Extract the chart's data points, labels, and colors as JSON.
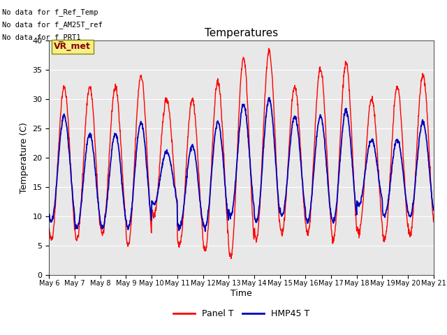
{
  "title": "Temperatures",
  "xlabel": "Time",
  "ylabel": "Temperature (C)",
  "ylim": [
    0,
    40
  ],
  "background_color": "#e8e8e8",
  "no_data_texts": [
    "No data for f_Ref_Temp",
    "No data for f_AM25T_ref",
    "No data for f_PRT1"
  ],
  "vr_met_label": "VR_met",
  "legend_entries": [
    "Panel T",
    "HMP45 T"
  ],
  "line_colors": [
    "#ff0000",
    "#0000bb"
  ],
  "xtick_labels": [
    "May 6",
    "May 7",
    "May 8",
    "May 9",
    "May 10",
    "May 11",
    "May 12",
    "May 13",
    "May 14",
    "May 15",
    "May 16",
    "May 17",
    "May 18",
    "May 19",
    "May 20",
    "May 21"
  ],
  "num_days": 15,
  "panel_peaks": [
    32,
    32,
    32,
    34,
    30,
    30,
    33,
    37,
    38,
    32,
    35,
    36,
    30,
    32,
    34
  ],
  "panel_troughs": [
    6,
    6,
    7,
    5,
    10,
    5,
    4,
    3,
    6,
    7,
    7,
    6,
    7,
    6,
    7
  ],
  "hmp_peaks": [
    27,
    24,
    24,
    26,
    21,
    22,
    26,
    29,
    30,
    27,
    27,
    28,
    23,
    23,
    26
  ],
  "hmp_troughs": [
    9,
    8,
    8,
    8,
    12,
    8,
    8,
    10,
    9,
    10,
    9,
    9,
    12,
    10,
    10
  ]
}
